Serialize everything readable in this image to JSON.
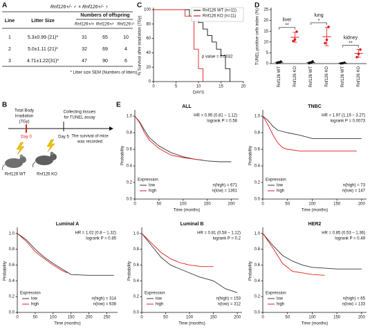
{
  "panel_labels": [
    "A",
    "B",
    "C",
    "D",
    "E"
  ],
  "table": {
    "title": "Rnf126+/- ♂  ×  Rnf126+/- ♀",
    "columns": [
      "Line",
      "Litter Size"
    ],
    "group_header": "Numbers of offspring",
    "subcolumns": [
      "Rnf126+/+",
      "Rnf126+/-",
      "Rnf126-/-"
    ],
    "rows": [
      [
        1,
        "5.3±0.99 (21)*",
        31,
        65,
        10
      ],
      [
        2,
        "5.0±1.11 (21)*",
        32,
        69,
        4
      ],
      [
        3,
        "4.71±1.22(31)*",
        47,
        90,
        6
      ]
    ],
    "footnote": "* Litter size  SEM (Numbers of litters)"
  },
  "diagram": {
    "irradiation": [
      "Total Body",
      "Irradiation",
      "(7Gy)"
    ],
    "collecting": [
      "Collecting tissues",
      "for TUNEL assay"
    ],
    "day0": "Day 0",
    "day5": "Day 5",
    "survival": [
      "The survival of mice",
      "was recorded"
    ],
    "mice": [
      "Rnf126 WT",
      "Rnf126 KO"
    ]
  },
  "chart_data": [
    {
      "type": "line",
      "ylabel": "% Survival after irradiation (7Gy)",
      "xlabel": "DAYS",
      "xlim": [
        0,
        20
      ],
      "ylim": [
        0,
        100
      ],
      "xticks": [
        0,
        5,
        10,
        15,
        20
      ],
      "yticks": [
        0,
        20,
        40,
        60,
        80,
        100
      ],
      "legend": "upper right",
      "annotations": [
        "p value = 0.0032"
      ],
      "series": [
        {
          "name": "Rnf126 WT (n=11)",
          "color": "#111111",
          "x": [
            0,
            8,
            8,
            10,
            10,
            11,
            11,
            12,
            12,
            13,
            13,
            14,
            14,
            15,
            15,
            16,
            16,
            17,
            17
          ],
          "values": [
            100,
            100,
            91,
            91,
            82,
            82,
            73,
            73,
            64,
            64,
            55,
            55,
            45,
            45,
            36,
            36,
            18,
            18,
            0
          ]
        },
        {
          "name": "Rnf126 KO (n=11)",
          "color": "#e41a1c",
          "x": [
            0,
            7,
            7,
            9,
            9,
            10,
            10,
            11,
            11
          ],
          "values": [
            100,
            100,
            91,
            91,
            45,
            45,
            18,
            18,
            0
          ]
        }
      ]
    },
    {
      "type": "dot",
      "ylabel": "TUNEL positive cells index (%)",
      "ylim": [
        0,
        25
      ],
      "yticks": [
        0,
        5,
        10,
        15,
        20,
        25
      ],
      "categories": [
        "Rnf126 WT",
        "Rnf126 KO",
        "Rnf126 WT",
        "Rnf126 KO",
        "Rnf126 WT",
        "Rnf126 KO"
      ],
      "colors": [
        "#111111",
        "#e41a1c",
        "#111111",
        "#e41a1c",
        "#111111",
        "#e41a1c"
      ],
      "points": [
        [
          0.3,
          0.6,
          0.9
        ],
        [
          10.5,
          11.2,
          14.8
        ],
        [
          0.2,
          0.4,
          1.0
        ],
        [
          9.5,
          11,
          17
        ],
        [
          0.1,
          0.2,
          0.4
        ],
        [
          3,
          4.5,
          6.5
        ]
      ],
      "means": [
        0.6,
        12.2,
        0.5,
        12.5,
        0.2,
        4.7
      ],
      "errors": [
        0.3,
        2.3,
        0.4,
        4.2,
        0.2,
        1.8
      ],
      "groups": [
        {
          "label": "liver",
          "significance": "**"
        },
        {
          "label": "lung",
          "significance": "*"
        },
        {
          "label": "kidney",
          "significance": "**"
        }
      ]
    },
    {
      "type": "line",
      "title": "ALL",
      "xlabel": "Time (months)",
      "ylabel": "Probability",
      "xlim": [
        0,
        215
      ],
      "ylim": [
        0,
        1.05
      ],
      "xticks": [
        0,
        50,
        100,
        150,
        200
      ],
      "yticks": [
        {
          "value": 0,
          "label": "0.0"
        },
        0.2,
        0.4,
        0.6,
        0.8,
        {
          "value": 1,
          "label": "1.0"
        }
      ],
      "annotations": [
        "HR = 0.95 (0.81 – 1.12)",
        "logrank P = 0.56"
      ],
      "legend": "lower left",
      "legend_title": "Expression",
      "n_labels": [
        "n(high) = 671",
        "n(low) = 1361"
      ],
      "series": [
        {
          "name": "low",
          "color": "#333333",
          "x": [
            0,
            10,
            20,
            30,
            50,
            75,
            100,
            125,
            150,
            175,
            200
          ],
          "values": [
            1,
            0.93,
            0.83,
            0.74,
            0.64,
            0.56,
            0.51,
            0.48,
            0.46,
            0.45,
            0.45
          ]
        },
        {
          "name": "high",
          "color": "#e41a1c",
          "x": [
            0,
            10,
            20,
            30,
            50,
            75,
            100,
            125,
            140
          ],
          "values": [
            1,
            0.92,
            0.8,
            0.71,
            0.61,
            0.53,
            0.5,
            0.48,
            0.47
          ]
        }
      ]
    },
    {
      "type": "line",
      "title": "TNBC",
      "xlabel": "Time (months)",
      "ylabel": "Probability",
      "xlim": [
        0,
        210
      ],
      "ylim": [
        0,
        1.05
      ],
      "xticks": [
        0,
        50,
        100,
        150,
        200
      ],
      "yticks": [
        {
          "value": 0,
          "label": "0.0"
        },
        0.2,
        0.4,
        0.6,
        0.8,
        {
          "value": 1,
          "label": "1.0"
        }
      ],
      "annotations": [
        "HR = 1.97 (1.19 – 3.27)",
        "logrank P = 0.0073"
      ],
      "legend": "lower left",
      "legend_title": "Expression",
      "n_labels": [
        "n(high) = 73",
        "n(low) = 147"
      ],
      "series": [
        {
          "name": "low",
          "color": "#333333",
          "x": [
            0,
            10,
            20,
            30,
            50,
            75,
            100,
            150,
            175,
            200
          ],
          "values": [
            1,
            0.95,
            0.88,
            0.83,
            0.8,
            0.77,
            0.73,
            0.73,
            0.73,
            0.73
          ]
        },
        {
          "name": "high",
          "color": "#e41a1c",
          "x": [
            0,
            10,
            20,
            30,
            40,
            50,
            75,
            100,
            150,
            190
          ],
          "values": [
            1,
            0.9,
            0.78,
            0.68,
            0.62,
            0.6,
            0.58,
            0.58,
            0.58,
            0.58
          ]
        }
      ]
    },
    {
      "type": "line",
      "title": "Luminal A",
      "xlabel": "Time (months)",
      "ylabel": "Probability",
      "xlim": [
        0,
        280
      ],
      "ylim": [
        0,
        1.05
      ],
      "xticks": [
        0,
        50,
        100,
        150,
        200,
        250
      ],
      "yticks": [
        {
          "value": 0,
          "label": "0.0"
        },
        0.2,
        0.4,
        0.6,
        0.8,
        {
          "value": 1,
          "label": "1.0"
        }
      ],
      "annotations": [
        "HR = 1.02 (0.8 – 1.32)",
        "logrank P = 0.85"
      ],
      "legend": "lower left",
      "legend_title": "Expression",
      "n_labels": [
        "n(high) = 314",
        "n(low) = 638"
      ],
      "series": [
        {
          "name": "low",
          "color": "#333333",
          "x": [
            0,
            25,
            50,
            75,
            100,
            125,
            150,
            200,
            250,
            270
          ],
          "values": [
            1,
            0.92,
            0.8,
            0.7,
            0.62,
            0.55,
            0.48,
            0.47,
            0.47,
            0.47
          ]
        },
        {
          "name": "high",
          "color": "#e41a1c",
          "x": [
            0,
            25,
            50,
            75,
            100,
            125,
            140
          ],
          "values": [
            1,
            0.9,
            0.77,
            0.68,
            0.6,
            0.53,
            0.5
          ]
        }
      ]
    },
    {
      "type": "line",
      "title": "Luminal B",
      "xlabel": "Time (months)",
      "ylabel": "Probability",
      "xlim": [
        0,
        210
      ],
      "ylim": [
        0,
        1.05
      ],
      "xticks": [
        0,
        50,
        100,
        150,
        200
      ],
      "yticks": [
        {
          "value": 0,
          "label": "0.0"
        },
        0.2,
        0.4,
        0.6,
        0.8,
        {
          "value": 1,
          "label": "1.0"
        }
      ],
      "annotations": [
        "HR = 0.81 (0.58 – 1.12)",
        "logrank P = 0.2"
      ],
      "legend": "lower left",
      "legend_title": "Expression",
      "n_labels": [
        "n(high) = 153",
        "n(low) = 312"
      ],
      "series": [
        {
          "name": "low",
          "color": "#333333",
          "x": [
            0,
            20,
            40,
            60,
            80,
            100,
            120,
            150,
            175,
            200
          ],
          "values": [
            1,
            0.85,
            0.7,
            0.6,
            0.55,
            0.5,
            0.45,
            0.4,
            0.3,
            0.25
          ]
        },
        {
          "name": "high",
          "color": "#e41a1c",
          "x": [
            0,
            20,
            40,
            60,
            80,
            100,
            125,
            150
          ],
          "values": [
            1,
            0.88,
            0.76,
            0.68,
            0.63,
            0.6,
            0.58,
            0.58
          ]
        }
      ]
    },
    {
      "type": "line",
      "title": "HER2",
      "xlabel": "Time (months)",
      "ylabel": "Probability",
      "xlim": [
        0,
        210
      ],
      "ylim": [
        0,
        1.05
      ],
      "xticks": [
        0,
        50,
        100,
        150,
        200
      ],
      "yticks": [
        {
          "value": 0,
          "label": "0.0"
        },
        0.2,
        0.4,
        0.6,
        0.8,
        {
          "value": 1,
          "label": "1.0"
        }
      ],
      "annotations": [
        "HR = 0.85 (0.53 – 1.36)",
        "logrank P = 0.49"
      ],
      "legend": "lower left",
      "legend_title": "Expression",
      "n_labels": [
        "n(high) = 65",
        "n(low) = 133"
      ],
      "series": [
        {
          "name": "low",
          "color": "#333333",
          "x": [
            0,
            20,
            40,
            60,
            80,
            100,
            150,
            200
          ],
          "values": [
            1,
            0.85,
            0.72,
            0.65,
            0.6,
            0.57,
            0.55,
            0.55
          ]
        },
        {
          "name": "high",
          "color": "#e41a1c",
          "x": [
            0,
            20,
            40,
            60,
            80,
            100,
            125
          ],
          "values": [
            1,
            0.82,
            0.62,
            0.52,
            0.5,
            0.48,
            0.47
          ]
        }
      ]
    }
  ]
}
